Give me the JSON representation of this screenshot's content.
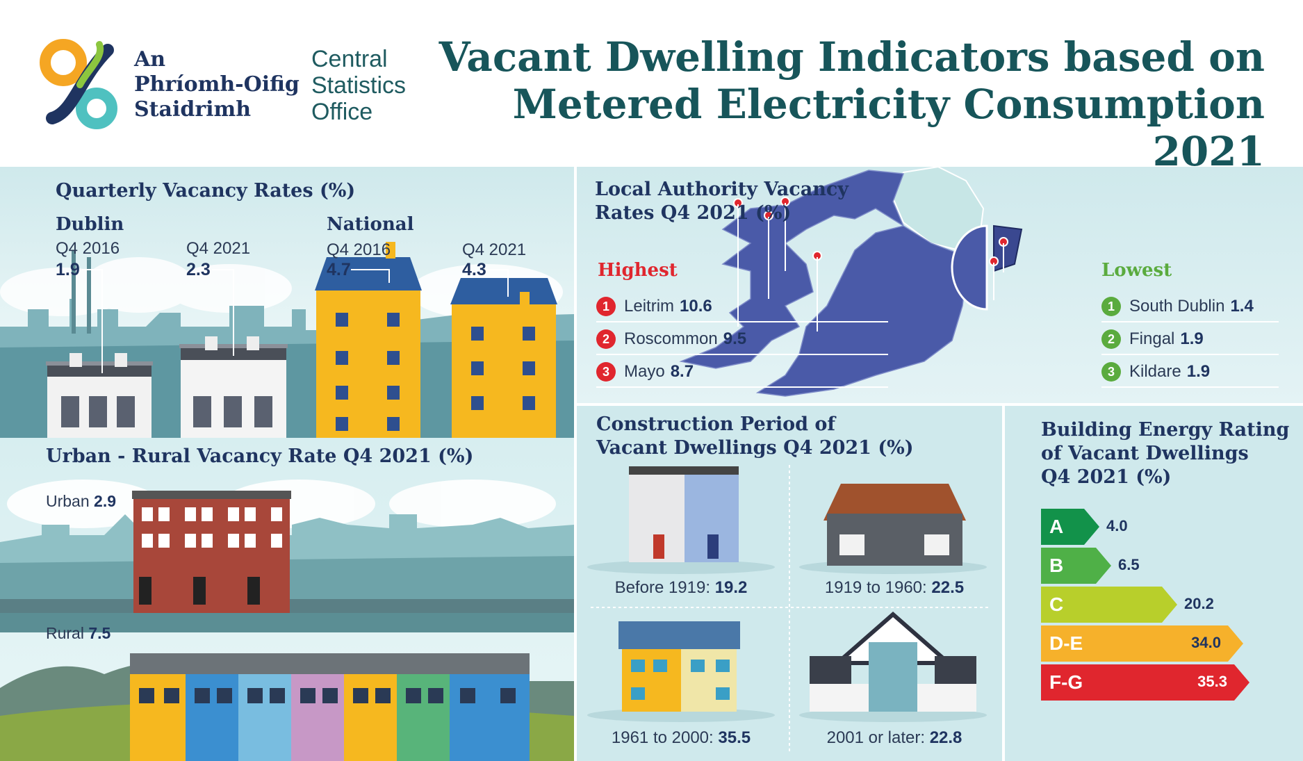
{
  "header": {
    "logo_irish": [
      "An",
      "Phríomh-Oifig",
      "Staidrimh"
    ],
    "logo_english": [
      "Central",
      "Statistics",
      "Office"
    ],
    "title_line1": "Vacant Dwelling Indicators based on",
    "title_line2": "Metered Electricity Consumption 2021"
  },
  "quarterly": {
    "title": "Quarterly Vacancy Rates (%)",
    "dublin_label": "Dublin",
    "national_label": "National",
    "items": [
      {
        "period": "Q4 2016",
        "value": "1.9"
      },
      {
        "period": "Q4 2021",
        "value": "2.3"
      },
      {
        "period": "Q4 2016",
        "value": "4.7"
      },
      {
        "period": "Q4 2021",
        "value": "4.3"
      }
    ]
  },
  "urban_rural": {
    "title": "Urban - Rural Vacancy Rate Q4 2021 (%)",
    "urban_label": "Urban",
    "urban_value": "2.9",
    "rural_label": "Rural",
    "rural_value": "7.5"
  },
  "local_authority": {
    "title_line1": "Local Authority Vacancy",
    "title_line2": "Rates Q4 2021 (%)",
    "highest_label": "Highest",
    "lowest_label": "Lowest",
    "highest": [
      {
        "rank": "1",
        "name": "Leitrim",
        "value": "10.6"
      },
      {
        "rank": "2",
        "name": "Roscommon",
        "value": "9.5"
      },
      {
        "rank": "3",
        "name": "Mayo",
        "value": "8.7"
      }
    ],
    "lowest": [
      {
        "rank": "1",
        "name": "South Dublin",
        "value": "1.4"
      },
      {
        "rank": "2",
        "name": "Fingal",
        "value": "1.9"
      },
      {
        "rank": "3",
        "name": "Kildare",
        "value": "1.9"
      }
    ]
  },
  "construction": {
    "title_line1": "Construction Period of",
    "title_line2": "Vacant Dwellings Q4 2021 (%)",
    "items": [
      {
        "label": "Before 1919:",
        "value": "19.2"
      },
      {
        "label": "1919 to 1960:",
        "value": "22.5"
      },
      {
        "label": "1961 to 2000:",
        "value": "35.5"
      },
      {
        "label": "2001 or later:",
        "value": "22.8"
      }
    ]
  },
  "ber": {
    "title_line1": "Building Energy Rating",
    "title_line2": "of Vacant Dwellings",
    "title_line3": "Q4 2021 (%)",
    "bars": [
      {
        "grade": "A",
        "value": "4.0",
        "color": "#12924a"
      },
      {
        "grade": "B",
        "value": "6.5",
        "color": "#4fb047"
      },
      {
        "grade": "C",
        "value": "20.2",
        "color": "#b8cf2b"
      },
      {
        "grade": "D-E",
        "value": "34.0",
        "color": "#f6b12b"
      },
      {
        "grade": "F-G",
        "value": "35.3",
        "color": "#e0262e"
      }
    ]
  },
  "colors": {
    "title": "#17555a",
    "navy": "#1f3460",
    "red": "#e0262e",
    "green": "#5aab3e",
    "map_blue": "#4a5aa8",
    "ni_teal": "#c7e6e6"
  }
}
